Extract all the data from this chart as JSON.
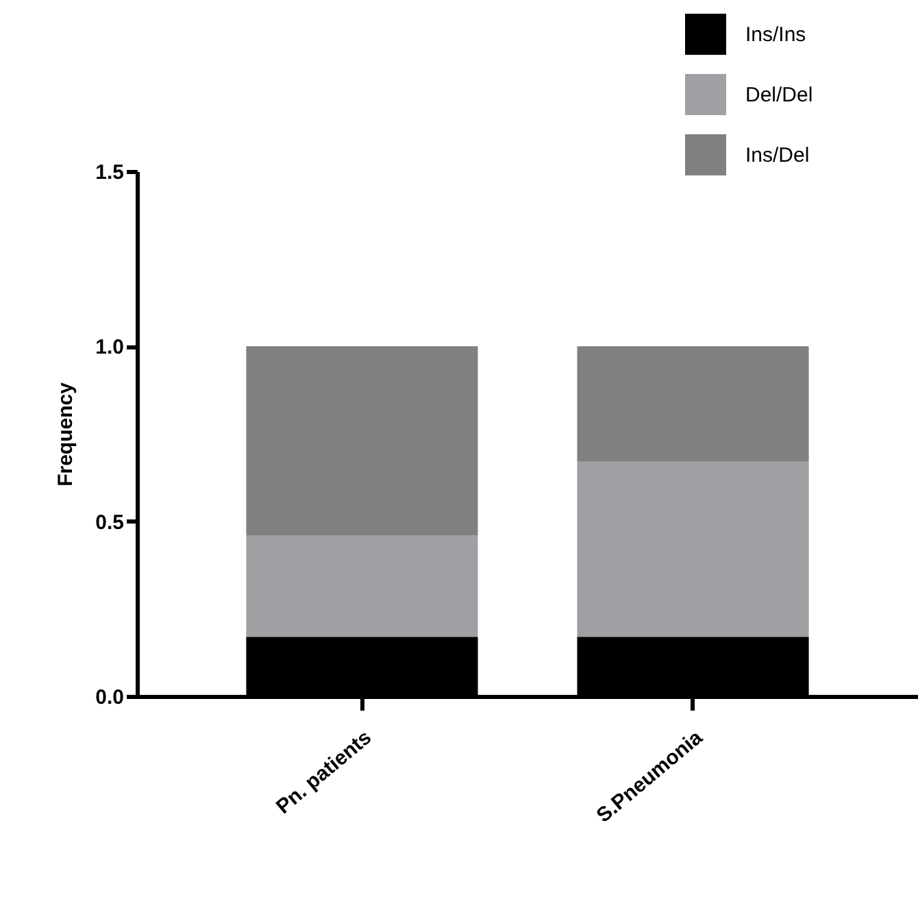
{
  "chart_data": {
    "type": "bar",
    "stacked": true,
    "ylabel": "Frequency",
    "categories": [
      "Pn. patients",
      "S.Pneumonia"
    ],
    "series": [
      {
        "name": "Ins/Ins",
        "color": "#000000",
        "values": [
          0.17,
          0.17
        ]
      },
      {
        "name": "Del/Del",
        "color": "#a0a0a4",
        "values": [
          0.29,
          0.5
        ]
      },
      {
        "name": "Ins/Del",
        "color": "#808080",
        "values": [
          0.54,
          0.33
        ]
      }
    ],
    "ylim": [
      0,
      1.5
    ],
    "yticks": [
      {
        "value": 0,
        "label": "0.0"
      },
      0.5,
      {
        "value": 1,
        "label": "1.0"
      },
      1.5
    ],
    "grid": false,
    "legend": "top right"
  }
}
